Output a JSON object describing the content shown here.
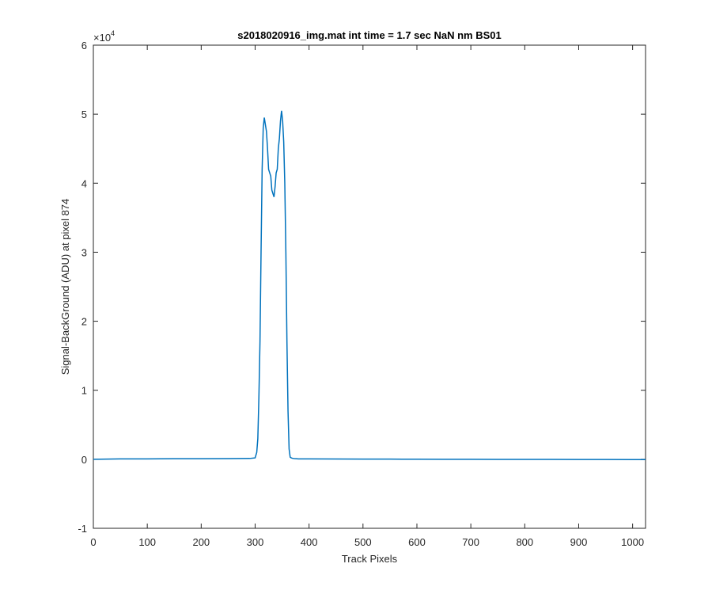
{
  "chart_data": {
    "type": "line",
    "title": "s2018020916_img.mat int time = 1.7 sec  NaN nm BS01",
    "xlabel": "Track Pixels",
    "ylabel": "Signal-BackGround (ADU) at pixel 874",
    "xlim": [
      0,
      1024
    ],
    "ylim": [
      -10000,
      60000
    ],
    "xticks": [
      0,
      100,
      200,
      300,
      400,
      500,
      600,
      700,
      800,
      900,
      1000
    ],
    "yticks": [
      -10000,
      0,
      10000,
      20000,
      30000,
      40000,
      50000,
      60000
    ],
    "ytick_labels": [
      "-1",
      "0",
      "1",
      "2",
      "3",
      "4",
      "5",
      "6"
    ],
    "y_exponent_base": "×10",
    "y_exponent_power": "4",
    "grid": false,
    "line_color": "#0072BD",
    "series": [
      {
        "x": [
          0,
          50,
          100,
          150,
          200,
          250,
          290,
          300,
          303,
          305,
          307,
          309,
          311,
          313,
          315,
          317,
          319,
          321,
          323,
          325,
          327,
          329,
          331,
          333,
          335,
          337,
          339,
          341,
          343,
          345,
          347,
          349,
          351,
          353,
          355,
          357,
          359,
          361,
          363,
          365,
          367,
          369,
          371,
          373,
          376,
          380,
          400,
          450,
          500,
          550,
          600,
          650,
          700,
          750,
          800,
          850,
          900,
          950,
          1000,
          1024
        ],
        "y": [
          0,
          50,
          50,
          80,
          80,
          100,
          120,
          200,
          1000,
          3000,
          9000,
          17000,
          30000,
          42000,
          48000,
          49500,
          48500,
          47500,
          45000,
          42000,
          41500,
          41000,
          39000,
          38500,
          38000,
          39500,
          41500,
          42000,
          45000,
          46500,
          49000,
          50500,
          49000,
          46000,
          40000,
          30000,
          17000,
          7000,
          1500,
          300,
          200,
          150,
          120,
          100,
          80,
          60,
          50,
          40,
          30,
          20,
          10,
          0,
          0,
          -10,
          -20,
          -20,
          -30,
          -30,
          -40,
          -40
        ]
      }
    ]
  }
}
